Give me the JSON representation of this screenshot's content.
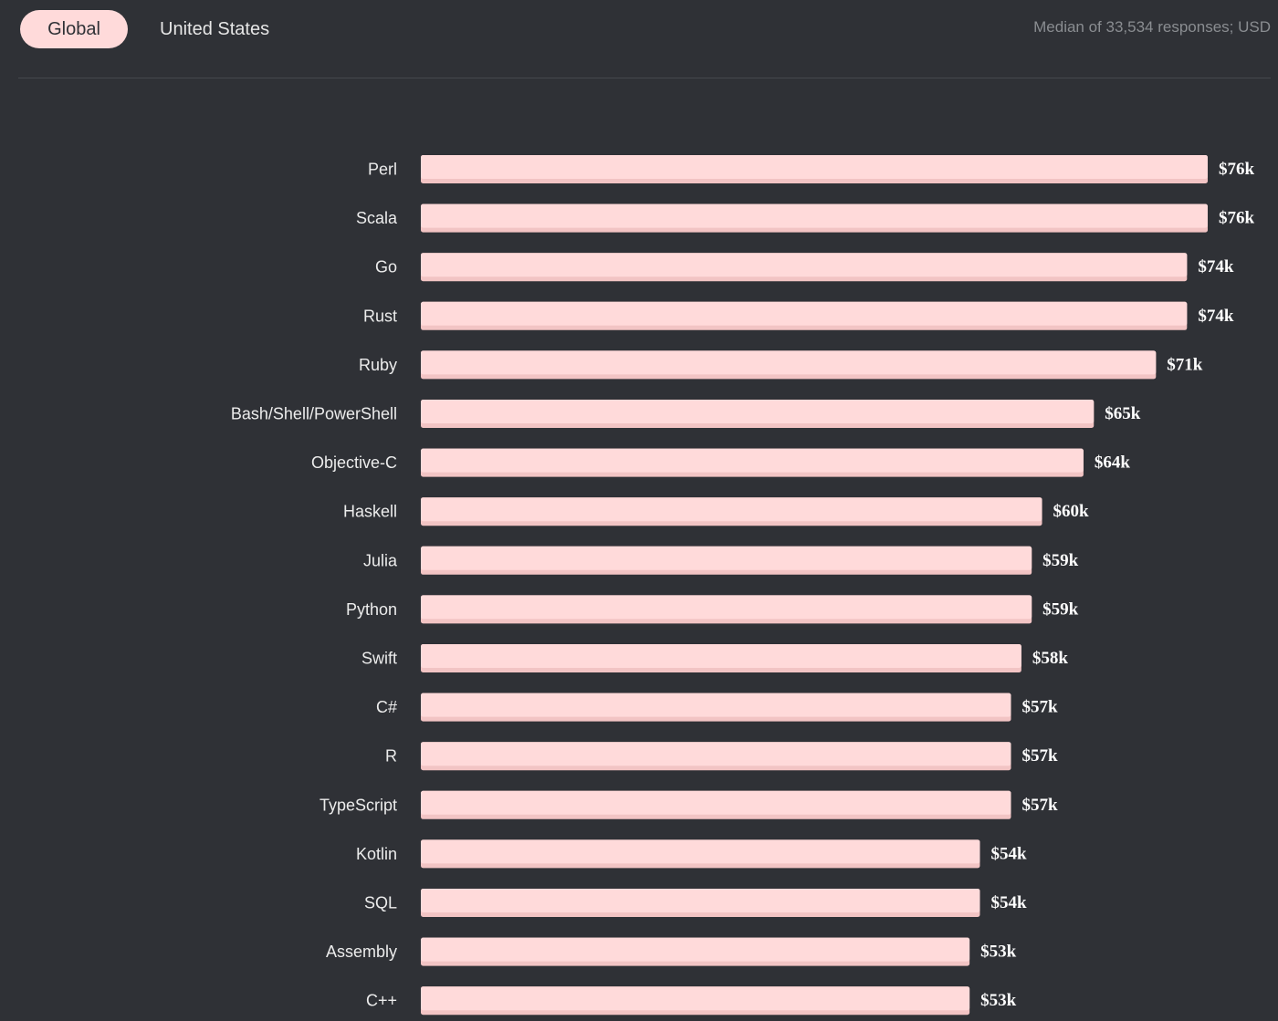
{
  "tabs": [
    {
      "label": "Global",
      "active": true
    },
    {
      "label": "United States",
      "active": false
    }
  ],
  "caption": "Median of 33,534 responses; USD",
  "colors": {
    "background": "#2f3136",
    "bar": "#ffdada",
    "bar_shade": "#f2c4c4"
  },
  "chart_data": {
    "type": "bar",
    "orientation": "horizontal",
    "categories": [
      "Perl",
      "Scala",
      "Go",
      "Rust",
      "Ruby",
      "Bash/Shell/PowerShell",
      "Objective-C",
      "Haskell",
      "Julia",
      "Python",
      "Swift",
      "C#",
      "R",
      "TypeScript",
      "Kotlin",
      "SQL",
      "Assembly",
      "C++"
    ],
    "values": [
      76,
      76,
      74,
      74,
      71,
      65,
      64,
      60,
      59,
      59,
      58,
      57,
      57,
      57,
      54,
      54,
      53,
      53
    ],
    "value_labels": [
      "$76k",
      "$76k",
      "$74k",
      "$74k",
      "$71k",
      "$65k",
      "$64k",
      "$60k",
      "$59k",
      "$59k",
      "$58k",
      "$57k",
      "$57k",
      "$57k",
      "$54k",
      "$54k",
      "$53k",
      "$53k"
    ],
    "unit": "USD (thousands)",
    "title": "",
    "xlabel": "",
    "ylabel": "",
    "xlim": [
      0,
      76
    ],
    "grid": false,
    "legend": "none"
  }
}
